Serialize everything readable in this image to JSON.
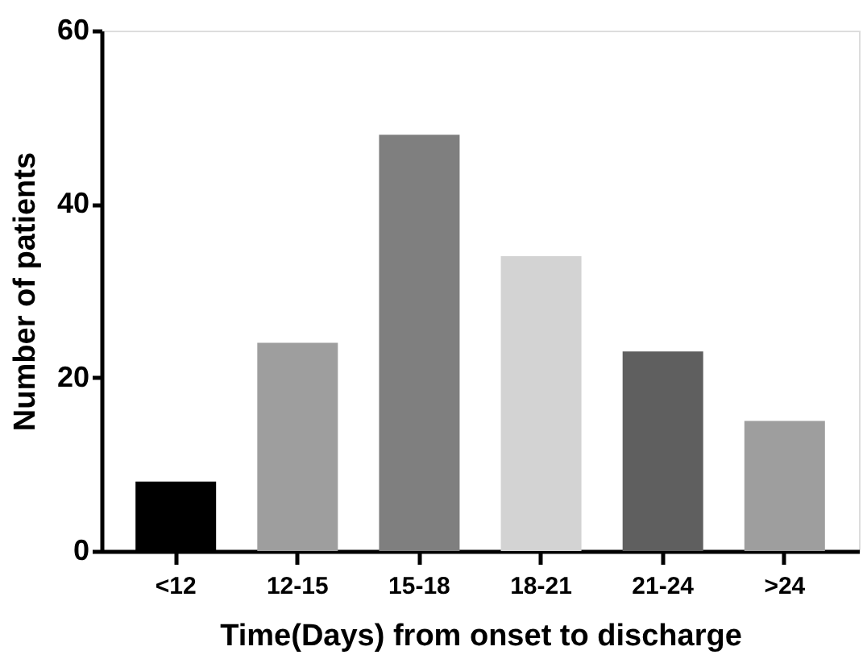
{
  "chart_data": {
    "type": "bar",
    "xlabel": "Time(Days) from onset to discharge",
    "ylabel": "Number of patients",
    "categories": [
      "<12",
      "12-15",
      "15-18",
      "18-21",
      "21-24",
      ">24"
    ],
    "values": [
      8,
      24,
      48,
      34,
      23,
      15
    ],
    "colors": [
      "#000000",
      "#9e9e9e",
      "#7f7f7f",
      "#d3d3d3",
      "#5f5f5f",
      "#9e9e9e"
    ],
    "ylim": [
      0,
      60
    ],
    "yticks": [
      0,
      20,
      40,
      60
    ],
    "grid": false,
    "legend": false
  }
}
